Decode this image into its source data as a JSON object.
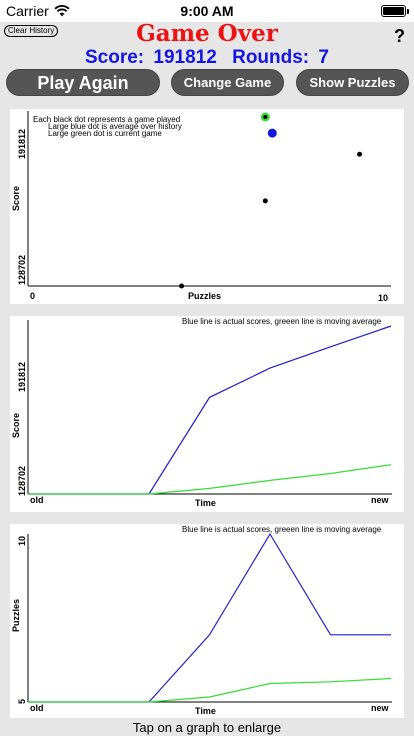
{
  "status_bar": {
    "carrier": "Carrier",
    "time": "9:00 AM"
  },
  "header": {
    "clear_history": "Clear History",
    "title": "Game Over",
    "help": "?",
    "score_label": "Score:",
    "score_value": "191812",
    "rounds_label": "Rounds:",
    "rounds_value": "7"
  },
  "buttons": {
    "play_again": "Play Again",
    "change_game": "Change Game",
    "show_puzzles": "Show Puzzles"
  },
  "colors": {
    "title": "#ee1111",
    "score": "#1515e0",
    "actual_line": "#2020c8",
    "average_line": "#33dd33"
  },
  "charts": {
    "scatter": {
      "notes": [
        "Each black dot represents a game played",
        "Large blue dot is average over history",
        "Large green dot is current game"
      ],
      "ylabel": "Score",
      "xlabel": "Puzzles",
      "y_tick_top": "191812",
      "y_tick_bottom": "128702",
      "x_tick_left": "0",
      "x_tick_right": "10"
    },
    "score_history": {
      "note": "Blue line is actual scores,  greeen line is moving average",
      "ylabel": "Score",
      "xlabel": "Time",
      "y_tick_top": "191812",
      "y_tick_bottom": "128702",
      "x_tick_left": "old",
      "x_tick_right": "new"
    },
    "puzzle_history": {
      "note": "Blue line is actual scores,  greeen line is moving average",
      "ylabel": "Puzzles",
      "xlabel": "Time",
      "y_tick_top": "10",
      "y_tick_bottom": "5",
      "x_tick_left": "old",
      "x_tick_right": "new"
    }
  },
  "chart_data": [
    {
      "type": "scatter",
      "xlabel": "Puzzles",
      "ylabel": "Score",
      "xlim": [
        0,
        10
      ],
      "ylim": [
        128702,
        191812
      ],
      "points": [
        {
          "x": 4.4,
          "y": 128702
        },
        {
          "x": 6.8,
          "y": 160500
        },
        {
          "x": 9.5,
          "y": 177900
        }
      ],
      "average": {
        "x": 7.0,
        "y": 185800
      },
      "current": {
        "x": 6.8,
        "y": 191812
      }
    },
    {
      "type": "line",
      "xlabel": "Time",
      "ylabel": "Score",
      "ylim": [
        128702,
        191812
      ],
      "x": [
        0,
        1,
        2,
        3,
        4,
        5,
        6
      ],
      "series": [
        {
          "name": "actual scores",
          "values": [
            128702,
            128702,
            128702,
            165000,
            176000,
            184000,
            191812
          ]
        },
        {
          "name": "moving average",
          "values": [
            128702,
            128702,
            128702,
            130800,
            133800,
            136400,
            139700
          ]
        }
      ]
    },
    {
      "type": "line",
      "xlabel": "Time",
      "ylabel": "Puzzles",
      "ylim": [
        5,
        10
      ],
      "x": [
        0,
        1,
        2,
        3,
        4,
        5,
        6
      ],
      "series": [
        {
          "name": "actual scores",
          "values": [
            5,
            5,
            5,
            7,
            10,
            7,
            7
          ]
        },
        {
          "name": "moving average",
          "values": [
            5,
            5,
            5,
            5.15,
            5.55,
            5.6,
            5.7
          ]
        }
      ]
    }
  ],
  "footer": "Tap on a graph to enlarge"
}
